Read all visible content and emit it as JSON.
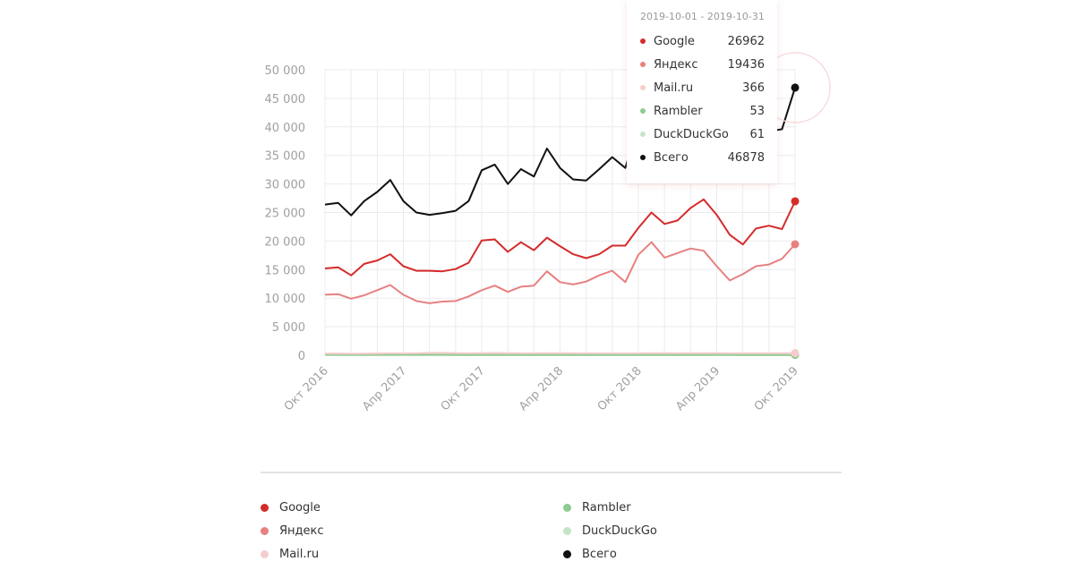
{
  "chart_data": {
    "type": "line",
    "title": "",
    "xlabel": "",
    "ylabel": "",
    "ylim": [
      0,
      50000
    ],
    "yticks": [
      "0",
      "5 000",
      "10 000",
      "15 000",
      "20 000",
      "25 000",
      "30 000",
      "35 000",
      "40 000",
      "45 000",
      "50 000"
    ],
    "ytick_values": [
      0,
      5000,
      10000,
      15000,
      20000,
      25000,
      30000,
      35000,
      40000,
      45000,
      50000
    ],
    "xtick_labels": [
      "Окт 2016",
      "Апр 2017",
      "Окт 2017",
      "Апр 2018",
      "Окт 2018",
      "Апр 2019",
      "Окт 2019"
    ],
    "xtick_indices": [
      0,
      6,
      12,
      18,
      24,
      30,
      36
    ],
    "x": [
      "2016-10",
      "2016-11",
      "2016-12",
      "2017-01",
      "2017-02",
      "2017-03",
      "2017-04",
      "2017-05",
      "2017-06",
      "2017-07",
      "2017-08",
      "2017-09",
      "2017-10",
      "2017-11",
      "2017-12",
      "2018-01",
      "2018-02",
      "2018-03",
      "2018-04",
      "2018-05",
      "2018-06",
      "2018-07",
      "2018-08",
      "2018-09",
      "2018-10",
      "2018-11",
      "2018-12",
      "2019-01",
      "2019-02",
      "2019-03",
      "2019-04",
      "2019-05",
      "2019-06",
      "2019-07",
      "2019-08",
      "2019-09",
      "2019-10"
    ],
    "grid": true,
    "legend_placement": "bottom",
    "series": [
      {
        "name": "Google",
        "color": "#d52b2b",
        "values": [
          15200,
          15400,
          14000,
          16000,
          16600,
          17700,
          15600,
          14800,
          14800,
          14700,
          15100,
          16200,
          20100,
          20300,
          18100,
          19800,
          18400,
          20600,
          19100,
          17700,
          17000,
          17700,
          19200,
          19200,
          22300,
          25000,
          23000,
          23600,
          25800,
          27300,
          24600,
          21100,
          19400,
          22200,
          22700,
          22100,
          26962
        ]
      },
      {
        "name": "Яндекс",
        "color": "#e88080",
        "values": [
          10600,
          10700,
          9900,
          10500,
          11400,
          12300,
          10600,
          9500,
          9100,
          9400,
          9500,
          10300,
          11400,
          12200,
          11100,
          12000,
          12200,
          14700,
          12800,
          12400,
          12900,
          14000,
          14800,
          12800,
          17600,
          19800,
          17100,
          17900,
          18700,
          18300,
          15600,
          13100,
          14200,
          15600,
          15900,
          16900,
          19436
        ]
      },
      {
        "name": "Mail.ru",
        "color": "#f5cdcd",
        "values": [
          300,
          300,
          280,
          300,
          320,
          340,
          330,
          350,
          400,
          420,
          380,
          360,
          380,
          400,
          380,
          360,
          350,
          380,
          370,
          360,
          350,
          340,
          330,
          330,
          350,
          380,
          370,
          360,
          370,
          380,
          370,
          350,
          340,
          350,
          360,
          350,
          366
        ]
      },
      {
        "name": "Rambler",
        "color": "#8fca90",
        "values": [
          90,
          90,
          85,
          85,
          80,
          80,
          78,
          75,
          75,
          72,
          70,
          70,
          70,
          68,
          66,
          65,
          65,
          64,
          62,
          62,
          60,
          60,
          59,
          58,
          58,
          57,
          57,
          56,
          56,
          55,
          55,
          55,
          54,
          54,
          54,
          53,
          53
        ]
      },
      {
        "name": "DuckDuckGo",
        "color": "#c6e4c6",
        "values": [
          20,
          20,
          22,
          24,
          25,
          26,
          28,
          30,
          30,
          32,
          33,
          35,
          36,
          38,
          38,
          40,
          40,
          42,
          43,
          44,
          45,
          46,
          47,
          48,
          49,
          50,
          51,
          52,
          53,
          54,
          55,
          56,
          57,
          58,
          59,
          60,
          61
        ]
      },
      {
        "name": "Всего",
        "color": "#111111",
        "values": [
          26400,
          26700,
          24500,
          27000,
          28600,
          30700,
          27000,
          25000,
          24600,
          24900,
          25300,
          27000,
          32400,
          33400,
          30000,
          32600,
          31300,
          36200,
          32800,
          30800,
          30600,
          32600,
          34700,
          32800,
          40500,
          45400,
          40700,
          42100,
          45100,
          46200,
          40800,
          34800,
          34200,
          38400,
          39200,
          39600,
          46878
        ]
      }
    ]
  },
  "tooltip": {
    "date_range": "2019-10-01 - 2019-10-31",
    "rows": [
      {
        "name": "Google",
        "value": "26962",
        "color": "#d52b2b"
      },
      {
        "name": "Яндекс",
        "value": "19436",
        "color": "#e88080"
      },
      {
        "name": "Mail.ru",
        "value": "366",
        "color": "#f5cdcd"
      },
      {
        "name": "Rambler",
        "value": "53",
        "color": "#8fca90"
      },
      {
        "name": "DuckDuckGo",
        "value": "61",
        "color": "#c6e4c6"
      },
      {
        "name": "Всего",
        "value": "46878",
        "color": "#111111"
      }
    ]
  },
  "legend": [
    {
      "name": "Google",
      "color": "#d52b2b"
    },
    {
      "name": "Яндекс",
      "color": "#e88080"
    },
    {
      "name": "Mail.ru",
      "color": "#f5cdcd"
    },
    {
      "name": "Rambler",
      "color": "#8fca90"
    },
    {
      "name": "DuckDuckGo",
      "color": "#c6e4c6"
    },
    {
      "name": "Всего",
      "color": "#111111"
    }
  ]
}
